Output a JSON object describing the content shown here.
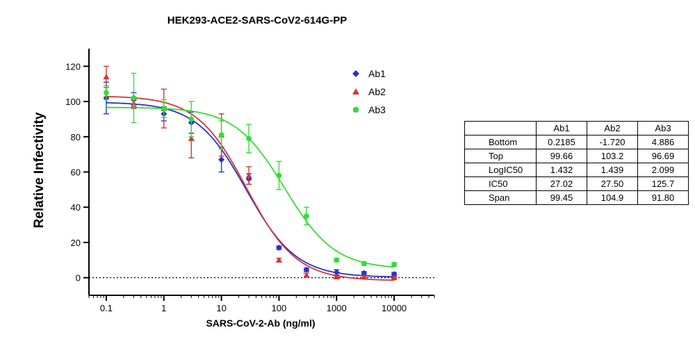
{
  "chart_data": {
    "type": "scatter",
    "title": "HEK293-ACE2-SARS-CoV2-614G-PP",
    "xlabel": "SARS-CoV-2-Ab (ng/ml)",
    "ylabel": "Relative Infectivity",
    "xscale": "log",
    "xlim": [
      0.05,
      50000
    ],
    "ylim": [
      -10,
      130
    ],
    "xticks": [
      0.1,
      1,
      10,
      100,
      1000,
      10000
    ],
    "xtick_labels": [
      "0.1",
      "1",
      "10",
      "100",
      "1000",
      "10000"
    ],
    "yticks": [
      0,
      20,
      40,
      60,
      80,
      100,
      120
    ],
    "ytick_labels": [
      "0",
      "20",
      "40",
      "60",
      "80",
      "100",
      "120"
    ],
    "reference_line": {
      "y": 0,
      "style": "dotted"
    },
    "legend_position": "top-right",
    "x": [
      0.1,
      0.3,
      1,
      3,
      10,
      30,
      100,
      300,
      1000,
      3000,
      10000
    ],
    "series": [
      {
        "name": "Ab1",
        "marker": "diamond",
        "color": "#2233cc",
        "values": [
          102,
          101,
          93,
          88,
          67,
          56,
          17,
          4.5,
          3,
          2.5,
          2
        ],
        "errors": [
          9,
          4,
          4,
          6,
          7,
          3,
          1,
          1,
          1.5,
          1,
          1
        ],
        "fit": {
          "bottom": 0.2185,
          "top": 99.66,
          "logic50": 1.432
        }
      },
      {
        "name": "Ab2",
        "marker": "triangle",
        "color": "#dd3333",
        "values": [
          114,
          99,
          96,
          79,
          81,
          58,
          10,
          1.5,
          0.5,
          0.5,
          0
        ],
        "errors": [
          6,
          3,
          11,
          11,
          12,
          5,
          1,
          1,
          0.5,
          0.5,
          0.5
        ],
        "fit": {
          "bottom": -1.72,
          "top": 103.2,
          "logic50": 1.439
        }
      },
      {
        "name": "Ab3",
        "marker": "circle",
        "color": "#33dd33",
        "values": [
          105,
          102,
          96,
          90,
          81,
          79,
          58,
          35,
          10,
          8,
          7.5
        ],
        "errors": [
          4,
          14,
          5,
          10,
          8,
          8,
          8,
          5,
          1,
          1,
          1
        ],
        "fit": {
          "bottom": 4.886,
          "top": 96.69,
          "logic50": 2.099
        }
      }
    ]
  },
  "param_table": {
    "columns": [
      "",
      "Ab1",
      "Ab2",
      "Ab3"
    ],
    "rows": [
      {
        "label": "Bottom",
        "values": [
          "0.2185",
          "-1.720",
          "4.886"
        ]
      },
      {
        "label": "Top",
        "values": [
          "99.66",
          "103.2",
          "96.69"
        ]
      },
      {
        "label": "LogIC50",
        "values": [
          "1.432",
          "1.439",
          "2.099"
        ]
      },
      {
        "label": "IC50",
        "values": [
          "27.02",
          "27.50",
          "125.7"
        ]
      },
      {
        "label": "Span",
        "values": [
          "99.45",
          "104.9",
          "91.80"
        ]
      }
    ]
  }
}
